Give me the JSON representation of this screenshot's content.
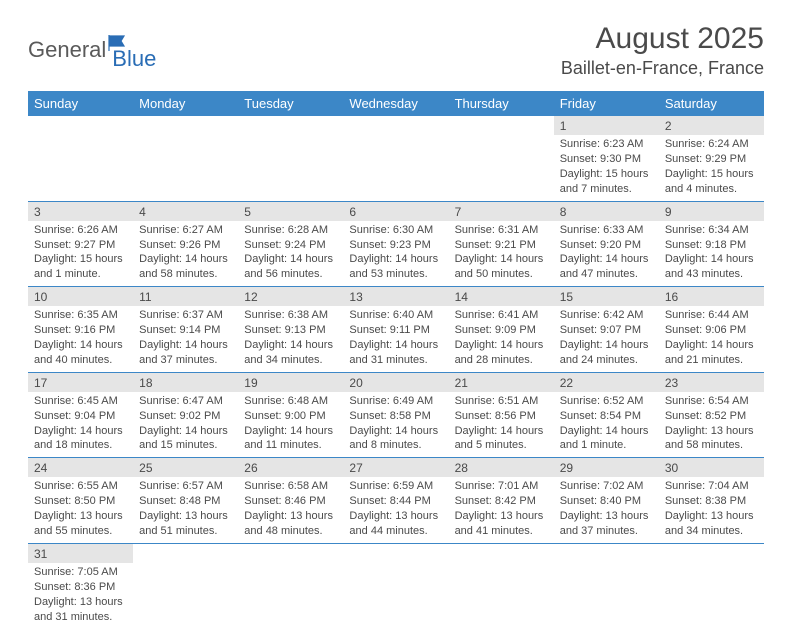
{
  "logo": {
    "part1": "General",
    "part2": "Blue"
  },
  "title": "August 2025",
  "location": "Baillet-en-France, France",
  "colors": {
    "header_bg": "#3c87c7",
    "header_text": "#ffffff",
    "daynum_bg": "#e5e5e5",
    "cell_border": "#3c87c7",
    "text": "#4a4a4a",
    "logo_blue": "#2a6db5",
    "page_bg": "#ffffff"
  },
  "day_headers": [
    "Sunday",
    "Monday",
    "Tuesday",
    "Wednesday",
    "Thursday",
    "Friday",
    "Saturday"
  ],
  "weeks": [
    [
      null,
      null,
      null,
      null,
      null,
      {
        "n": "1",
        "sr": "Sunrise: 6:23 AM",
        "ss": "Sunset: 9:30 PM",
        "dl": "Daylight: 15 hours and 7 minutes."
      },
      {
        "n": "2",
        "sr": "Sunrise: 6:24 AM",
        "ss": "Sunset: 9:29 PM",
        "dl": "Daylight: 15 hours and 4 minutes."
      }
    ],
    [
      {
        "n": "3",
        "sr": "Sunrise: 6:26 AM",
        "ss": "Sunset: 9:27 PM",
        "dl": "Daylight: 15 hours and 1 minute."
      },
      {
        "n": "4",
        "sr": "Sunrise: 6:27 AM",
        "ss": "Sunset: 9:26 PM",
        "dl": "Daylight: 14 hours and 58 minutes."
      },
      {
        "n": "5",
        "sr": "Sunrise: 6:28 AM",
        "ss": "Sunset: 9:24 PM",
        "dl": "Daylight: 14 hours and 56 minutes."
      },
      {
        "n": "6",
        "sr": "Sunrise: 6:30 AM",
        "ss": "Sunset: 9:23 PM",
        "dl": "Daylight: 14 hours and 53 minutes."
      },
      {
        "n": "7",
        "sr": "Sunrise: 6:31 AM",
        "ss": "Sunset: 9:21 PM",
        "dl": "Daylight: 14 hours and 50 minutes."
      },
      {
        "n": "8",
        "sr": "Sunrise: 6:33 AM",
        "ss": "Sunset: 9:20 PM",
        "dl": "Daylight: 14 hours and 47 minutes."
      },
      {
        "n": "9",
        "sr": "Sunrise: 6:34 AM",
        "ss": "Sunset: 9:18 PM",
        "dl": "Daylight: 14 hours and 43 minutes."
      }
    ],
    [
      {
        "n": "10",
        "sr": "Sunrise: 6:35 AM",
        "ss": "Sunset: 9:16 PM",
        "dl": "Daylight: 14 hours and 40 minutes."
      },
      {
        "n": "11",
        "sr": "Sunrise: 6:37 AM",
        "ss": "Sunset: 9:14 PM",
        "dl": "Daylight: 14 hours and 37 minutes."
      },
      {
        "n": "12",
        "sr": "Sunrise: 6:38 AM",
        "ss": "Sunset: 9:13 PM",
        "dl": "Daylight: 14 hours and 34 minutes."
      },
      {
        "n": "13",
        "sr": "Sunrise: 6:40 AM",
        "ss": "Sunset: 9:11 PM",
        "dl": "Daylight: 14 hours and 31 minutes."
      },
      {
        "n": "14",
        "sr": "Sunrise: 6:41 AM",
        "ss": "Sunset: 9:09 PM",
        "dl": "Daylight: 14 hours and 28 minutes."
      },
      {
        "n": "15",
        "sr": "Sunrise: 6:42 AM",
        "ss": "Sunset: 9:07 PM",
        "dl": "Daylight: 14 hours and 24 minutes."
      },
      {
        "n": "16",
        "sr": "Sunrise: 6:44 AM",
        "ss": "Sunset: 9:06 PM",
        "dl": "Daylight: 14 hours and 21 minutes."
      }
    ],
    [
      {
        "n": "17",
        "sr": "Sunrise: 6:45 AM",
        "ss": "Sunset: 9:04 PM",
        "dl": "Daylight: 14 hours and 18 minutes."
      },
      {
        "n": "18",
        "sr": "Sunrise: 6:47 AM",
        "ss": "Sunset: 9:02 PM",
        "dl": "Daylight: 14 hours and 15 minutes."
      },
      {
        "n": "19",
        "sr": "Sunrise: 6:48 AM",
        "ss": "Sunset: 9:00 PM",
        "dl": "Daylight: 14 hours and 11 minutes."
      },
      {
        "n": "20",
        "sr": "Sunrise: 6:49 AM",
        "ss": "Sunset: 8:58 PM",
        "dl": "Daylight: 14 hours and 8 minutes."
      },
      {
        "n": "21",
        "sr": "Sunrise: 6:51 AM",
        "ss": "Sunset: 8:56 PM",
        "dl": "Daylight: 14 hours and 5 minutes."
      },
      {
        "n": "22",
        "sr": "Sunrise: 6:52 AM",
        "ss": "Sunset: 8:54 PM",
        "dl": "Daylight: 14 hours and 1 minute."
      },
      {
        "n": "23",
        "sr": "Sunrise: 6:54 AM",
        "ss": "Sunset: 8:52 PM",
        "dl": "Daylight: 13 hours and 58 minutes."
      }
    ],
    [
      {
        "n": "24",
        "sr": "Sunrise: 6:55 AM",
        "ss": "Sunset: 8:50 PM",
        "dl": "Daylight: 13 hours and 55 minutes."
      },
      {
        "n": "25",
        "sr": "Sunrise: 6:57 AM",
        "ss": "Sunset: 8:48 PM",
        "dl": "Daylight: 13 hours and 51 minutes."
      },
      {
        "n": "26",
        "sr": "Sunrise: 6:58 AM",
        "ss": "Sunset: 8:46 PM",
        "dl": "Daylight: 13 hours and 48 minutes."
      },
      {
        "n": "27",
        "sr": "Sunrise: 6:59 AM",
        "ss": "Sunset: 8:44 PM",
        "dl": "Daylight: 13 hours and 44 minutes."
      },
      {
        "n": "28",
        "sr": "Sunrise: 7:01 AM",
        "ss": "Sunset: 8:42 PM",
        "dl": "Daylight: 13 hours and 41 minutes."
      },
      {
        "n": "29",
        "sr": "Sunrise: 7:02 AM",
        "ss": "Sunset: 8:40 PM",
        "dl": "Daylight: 13 hours and 37 minutes."
      },
      {
        "n": "30",
        "sr": "Sunrise: 7:04 AM",
        "ss": "Sunset: 8:38 PM",
        "dl": "Daylight: 13 hours and 34 minutes."
      }
    ],
    [
      {
        "n": "31",
        "sr": "Sunrise: 7:05 AM",
        "ss": "Sunset: 8:36 PM",
        "dl": "Daylight: 13 hours and 31 minutes."
      },
      null,
      null,
      null,
      null,
      null,
      null
    ]
  ]
}
